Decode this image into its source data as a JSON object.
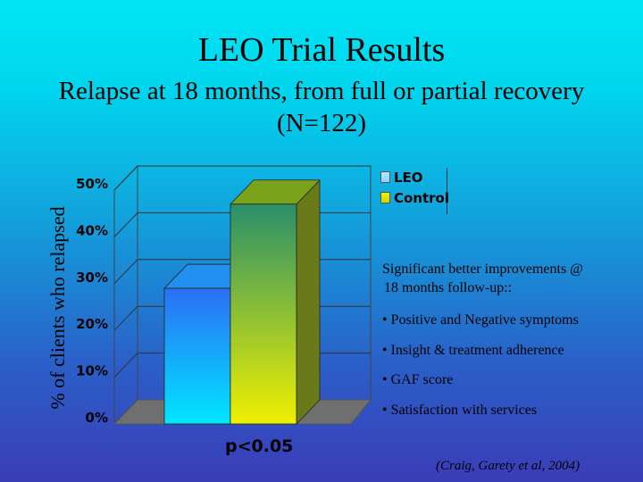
{
  "slide": {
    "title": "LEO Trial Results",
    "subtitle_line1": "Relapse at 18 months, from full or partial recovery",
    "subtitle_line2": "(N=122)",
    "background_top": "#00e6f4",
    "background_bottom": "#3b3cb8"
  },
  "chart_data": {
    "type": "bar",
    "title": "",
    "xlabel": "",
    "ylabel": "% of clients who relapsed",
    "categories": [
      "LEO",
      "Control"
    ],
    "values": [
      29,
      47
    ],
    "ylim": [
      0,
      50
    ],
    "ytick_labels": [
      "0%",
      "10%",
      "20%",
      "30%",
      "40%",
      "50%"
    ],
    "grid": true,
    "three_d": true,
    "colors": {
      "LEO": "#1fa8f0",
      "Control": "#6a9a1c"
    },
    "legend": {
      "entries": [
        "LEO",
        "Control"
      ],
      "position": "top-right"
    }
  },
  "findings": {
    "heading_line1": "Significant better improvements @",
    "heading_line2": "18 months follow-up::",
    "items": [
      "• Positive and Negative symptoms",
      "• Insight & treatment adherence",
      "• GAF score",
      "• Satisfaction with services"
    ]
  },
  "p_value": "p<0.05",
  "citation": "(Craig, Garety et al, 2004)"
}
